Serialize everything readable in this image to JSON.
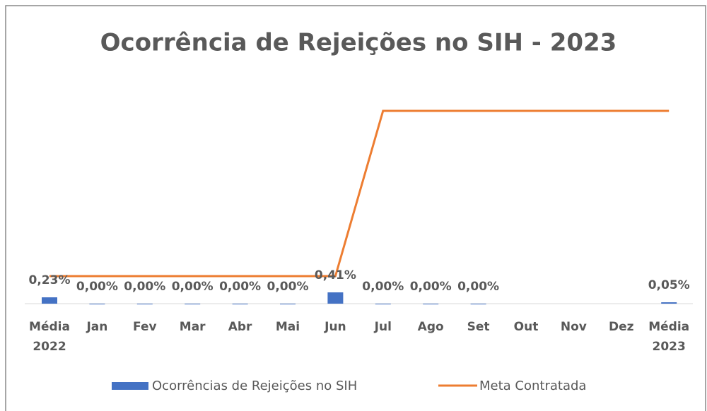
{
  "chart_data": {
    "type": "bar-line",
    "title": "Ocorrência de Rejeições no SIH - 2023",
    "categories": [
      "Média 2022",
      "Jan",
      "Fev",
      "Mar",
      "Abr",
      "Mai",
      "Jun",
      "Jul",
      "Ago",
      "Set",
      "Out",
      "Nov",
      "Dez",
      "Média 2023"
    ],
    "series": [
      {
        "name": "Ocorrências de Rejeições no SIH",
        "type": "bar",
        "color": "#4472c4",
        "values": [
          0.23,
          0,
          0,
          0,
          0,
          0,
          0.41,
          0,
          0,
          0,
          null,
          null,
          null,
          0.05
        ],
        "value_labels": [
          "0,23%",
          "0,00%",
          "0,00%",
          "0,00%",
          "0,00%",
          "0,00%",
          "0,41%",
          "0,00%",
          "0,00%",
          "0,00%",
          null,
          null,
          null,
          "0,05%"
        ]
      },
      {
        "name": "Meta Contratada",
        "type": "line",
        "color": "#ed7d31",
        "values": [
          1,
          1,
          1,
          1,
          1,
          1,
          1,
          7,
          7,
          7,
          7,
          7,
          7,
          7
        ]
      }
    ],
    "ylim": [
      0,
      8
    ]
  }
}
